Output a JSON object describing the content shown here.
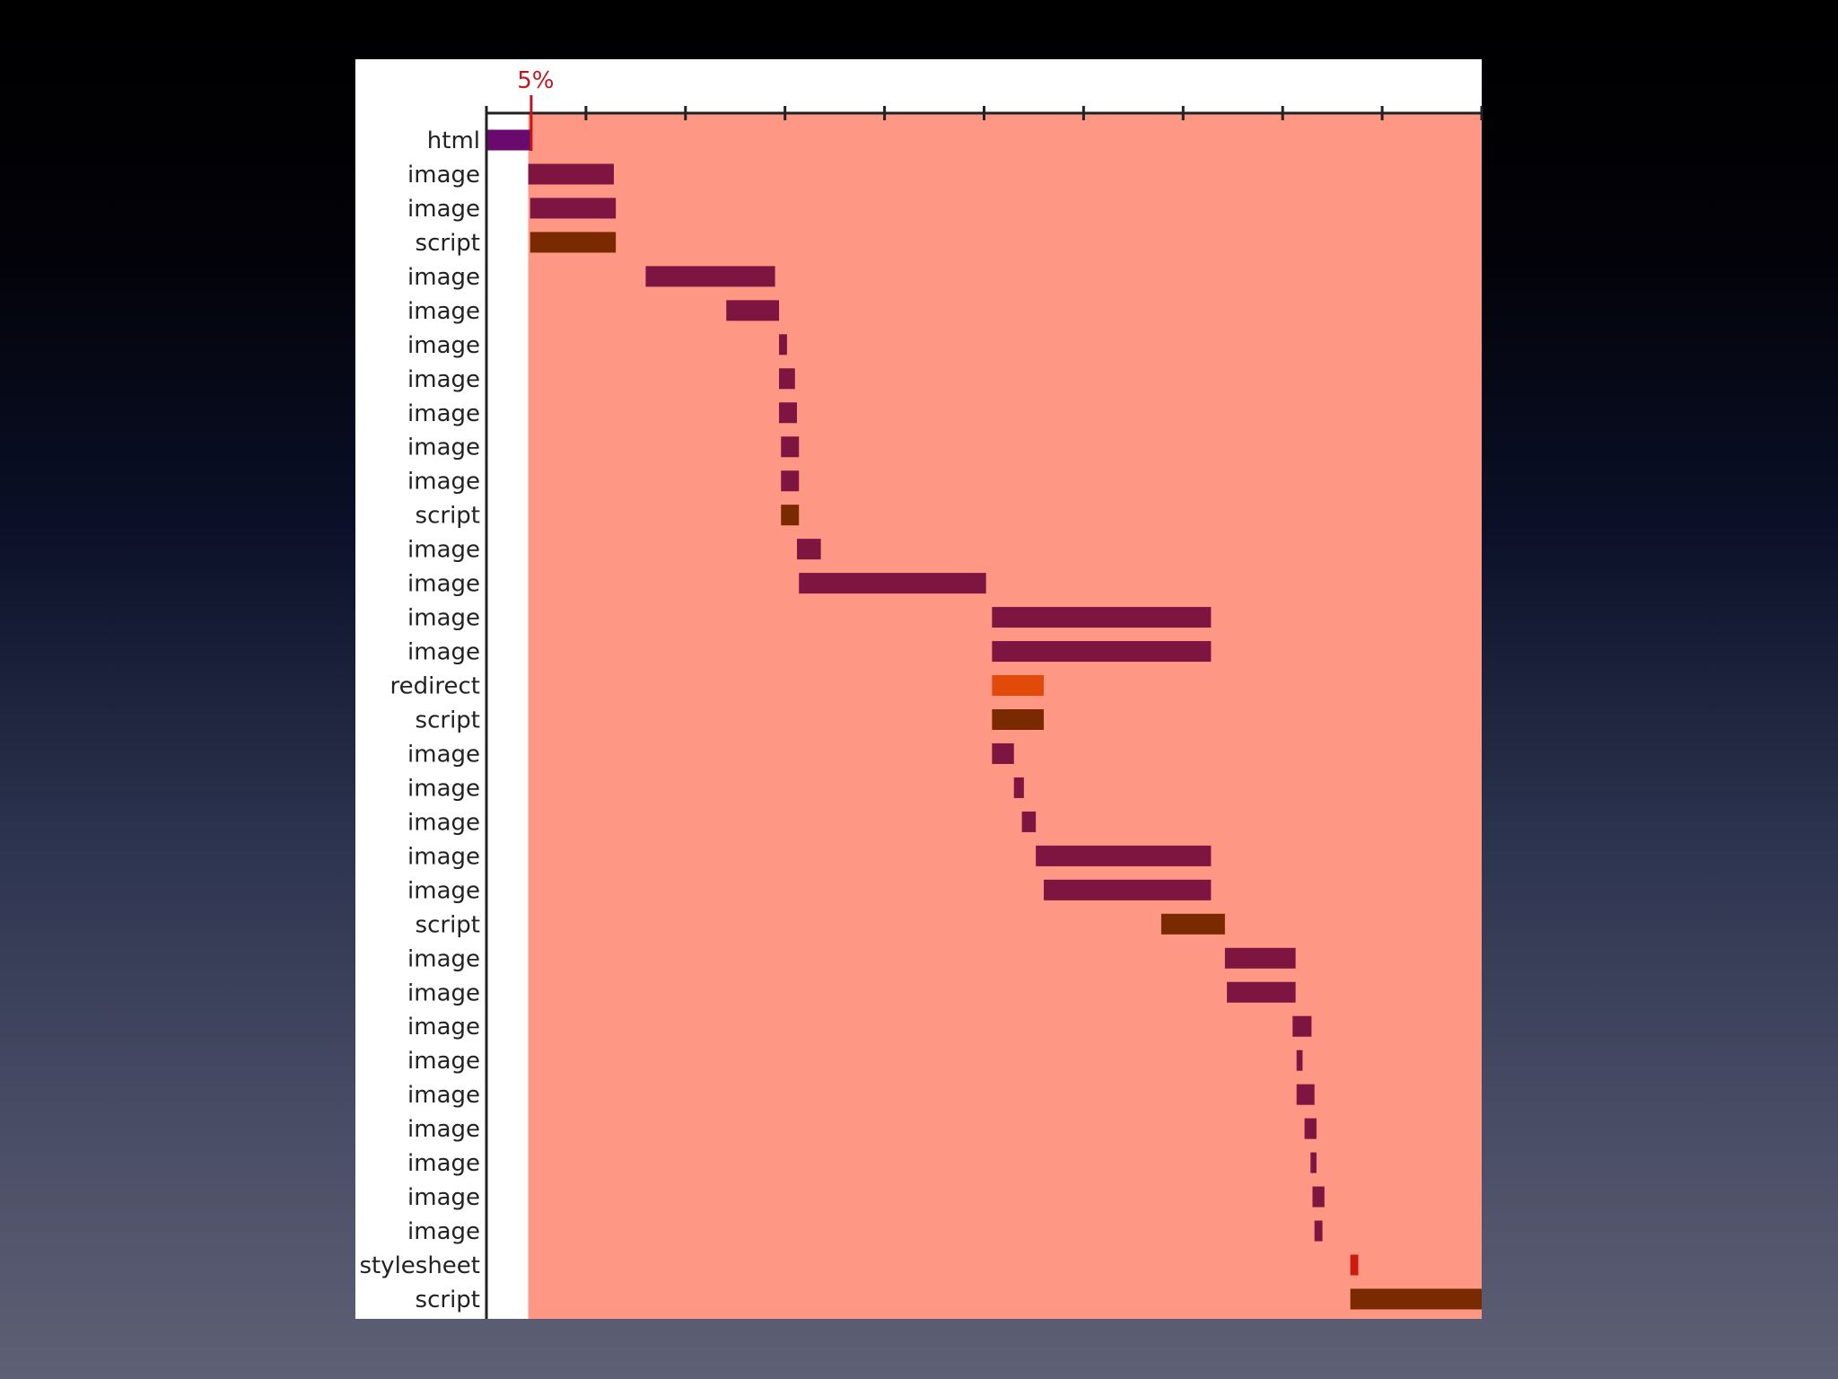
{
  "chart_data": {
    "type": "bar",
    "subtype": "waterfall",
    "orientation": "horizontal",
    "title": "",
    "xlabel": "",
    "ylabel": "",
    "xlim": [
      0,
      100
    ],
    "x_tick_count": 11,
    "x_tick_labels_visible": false,
    "grid": false,
    "legend": "none",
    "marker": {
      "label": "5%",
      "value": 4.5,
      "color": "#c0161e"
    },
    "colors": {
      "chart_background": "#ffffff",
      "region_fill": "#ff9785",
      "html": "#6a0a6e",
      "image": "#7e1440",
      "script": "#7a2a00",
      "redirect": "#e24a0a",
      "stylesheet": "#cc1a10",
      "axis": "#222222"
    },
    "shaded_region": {
      "start": 4.2,
      "end": 100
    },
    "rows": [
      {
        "label": "html",
        "type": "html",
        "start": 0.0,
        "end": 4.4
      },
      {
        "label": "image",
        "type": "image",
        "start": 4.2,
        "end": 12.8
      },
      {
        "label": "image",
        "type": "image",
        "start": 4.4,
        "end": 13.0
      },
      {
        "label": "script",
        "type": "script",
        "start": 4.4,
        "end": 13.0
      },
      {
        "label": "image",
        "type": "image",
        "start": 16.0,
        "end": 29.0
      },
      {
        "label": "image",
        "type": "image",
        "start": 24.1,
        "end": 29.4
      },
      {
        "label": "image",
        "type": "image",
        "start": 29.4,
        "end": 30.2
      },
      {
        "label": "image",
        "type": "image",
        "start": 29.4,
        "end": 31.0
      },
      {
        "label": "image",
        "type": "image",
        "start": 29.4,
        "end": 31.2
      },
      {
        "label": "image",
        "type": "image",
        "start": 29.6,
        "end": 31.4
      },
      {
        "label": "image",
        "type": "image",
        "start": 29.6,
        "end": 31.4
      },
      {
        "label": "script",
        "type": "script",
        "start": 29.6,
        "end": 31.4
      },
      {
        "label": "image",
        "type": "image",
        "start": 31.2,
        "end": 33.6
      },
      {
        "label": "image",
        "type": "image",
        "start": 31.4,
        "end": 50.2
      },
      {
        "label": "image",
        "type": "image",
        "start": 50.8,
        "end": 72.8
      },
      {
        "label": "image",
        "type": "image",
        "start": 50.8,
        "end": 72.8
      },
      {
        "label": "redirect",
        "type": "redirect",
        "start": 50.8,
        "end": 56.0
      },
      {
        "label": "script",
        "type": "script",
        "start": 50.8,
        "end": 56.0
      },
      {
        "label": "image",
        "type": "image",
        "start": 50.8,
        "end": 53.0
      },
      {
        "label": "image",
        "type": "image",
        "start": 53.0,
        "end": 54.0
      },
      {
        "label": "image",
        "type": "image",
        "start": 53.8,
        "end": 55.2
      },
      {
        "label": "image",
        "type": "image",
        "start": 55.2,
        "end": 72.8
      },
      {
        "label": "image",
        "type": "image",
        "start": 56.0,
        "end": 72.8
      },
      {
        "label": "script",
        "type": "script",
        "start": 67.8,
        "end": 74.2
      },
      {
        "label": "image",
        "type": "image",
        "start": 74.2,
        "end": 81.3
      },
      {
        "label": "image",
        "type": "image",
        "start": 74.4,
        "end": 81.3
      },
      {
        "label": "image",
        "type": "image",
        "start": 81.0,
        "end": 82.9
      },
      {
        "label": "image",
        "type": "image",
        "start": 81.4,
        "end": 82.0
      },
      {
        "label": "image",
        "type": "image",
        "start": 81.4,
        "end": 83.2
      },
      {
        "label": "image",
        "type": "image",
        "start": 82.2,
        "end": 83.4
      },
      {
        "label": "image",
        "type": "image",
        "start": 82.8,
        "end": 83.4
      },
      {
        "label": "image",
        "type": "image",
        "start": 83.0,
        "end": 84.2
      },
      {
        "label": "image",
        "type": "image",
        "start": 83.2,
        "end": 84.0
      },
      {
        "label": "stylesheet",
        "type": "stylesheet",
        "start": 86.8,
        "end": 87.6
      },
      {
        "label": "script",
        "type": "script",
        "start": 86.8,
        "end": 100.0
      }
    ]
  }
}
